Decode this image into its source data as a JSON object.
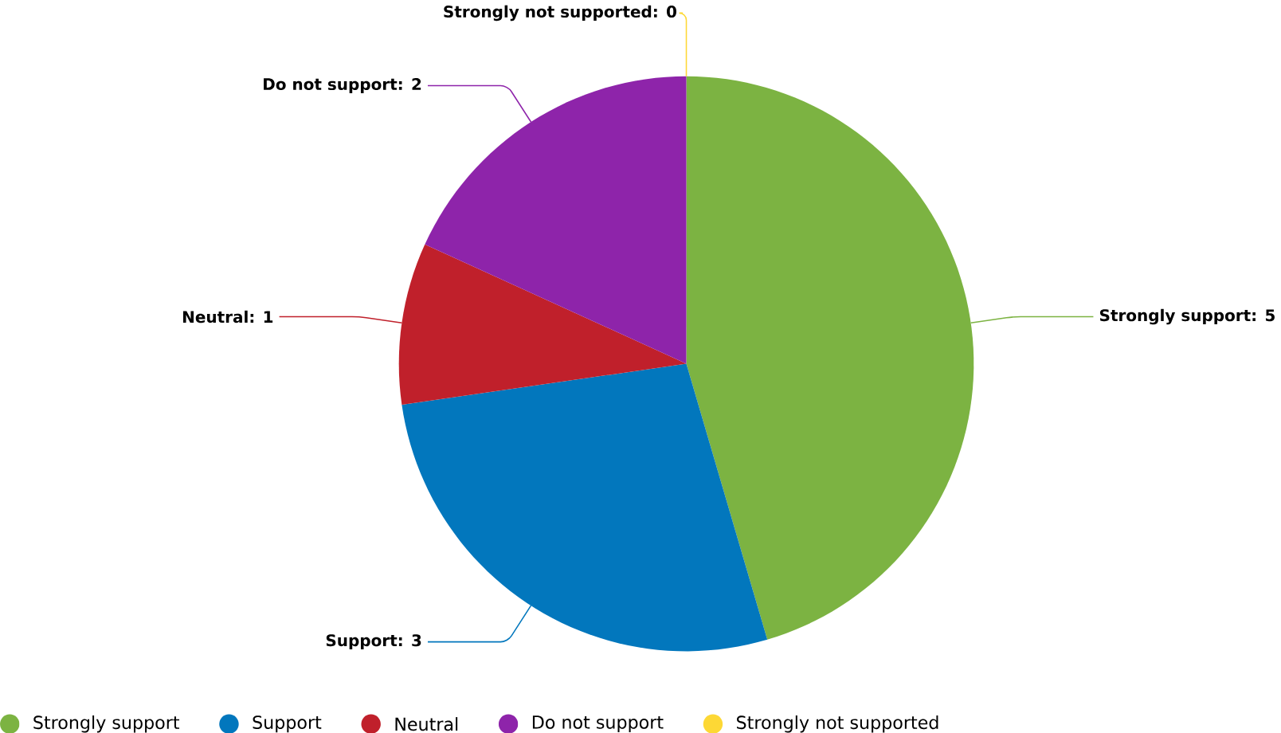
{
  "chart_data": {
    "type": "pie",
    "categories": [
      "Strongly support",
      "Support",
      "Neutral",
      "Do not support",
      "Strongly not supported"
    ],
    "values": [
      5,
      3,
      1,
      2,
      0
    ],
    "colors": [
      "#7cb342",
      "#0277bd",
      "#c0202b",
      "#8e24aa",
      "#fdd835"
    ],
    "value_labels": [
      "Strongly support: 5",
      "Support: 3",
      "Neutral: 1",
      "Do not support: 2",
      "Strongly not supported: 0"
    ],
    "legend": "bottom"
  }
}
